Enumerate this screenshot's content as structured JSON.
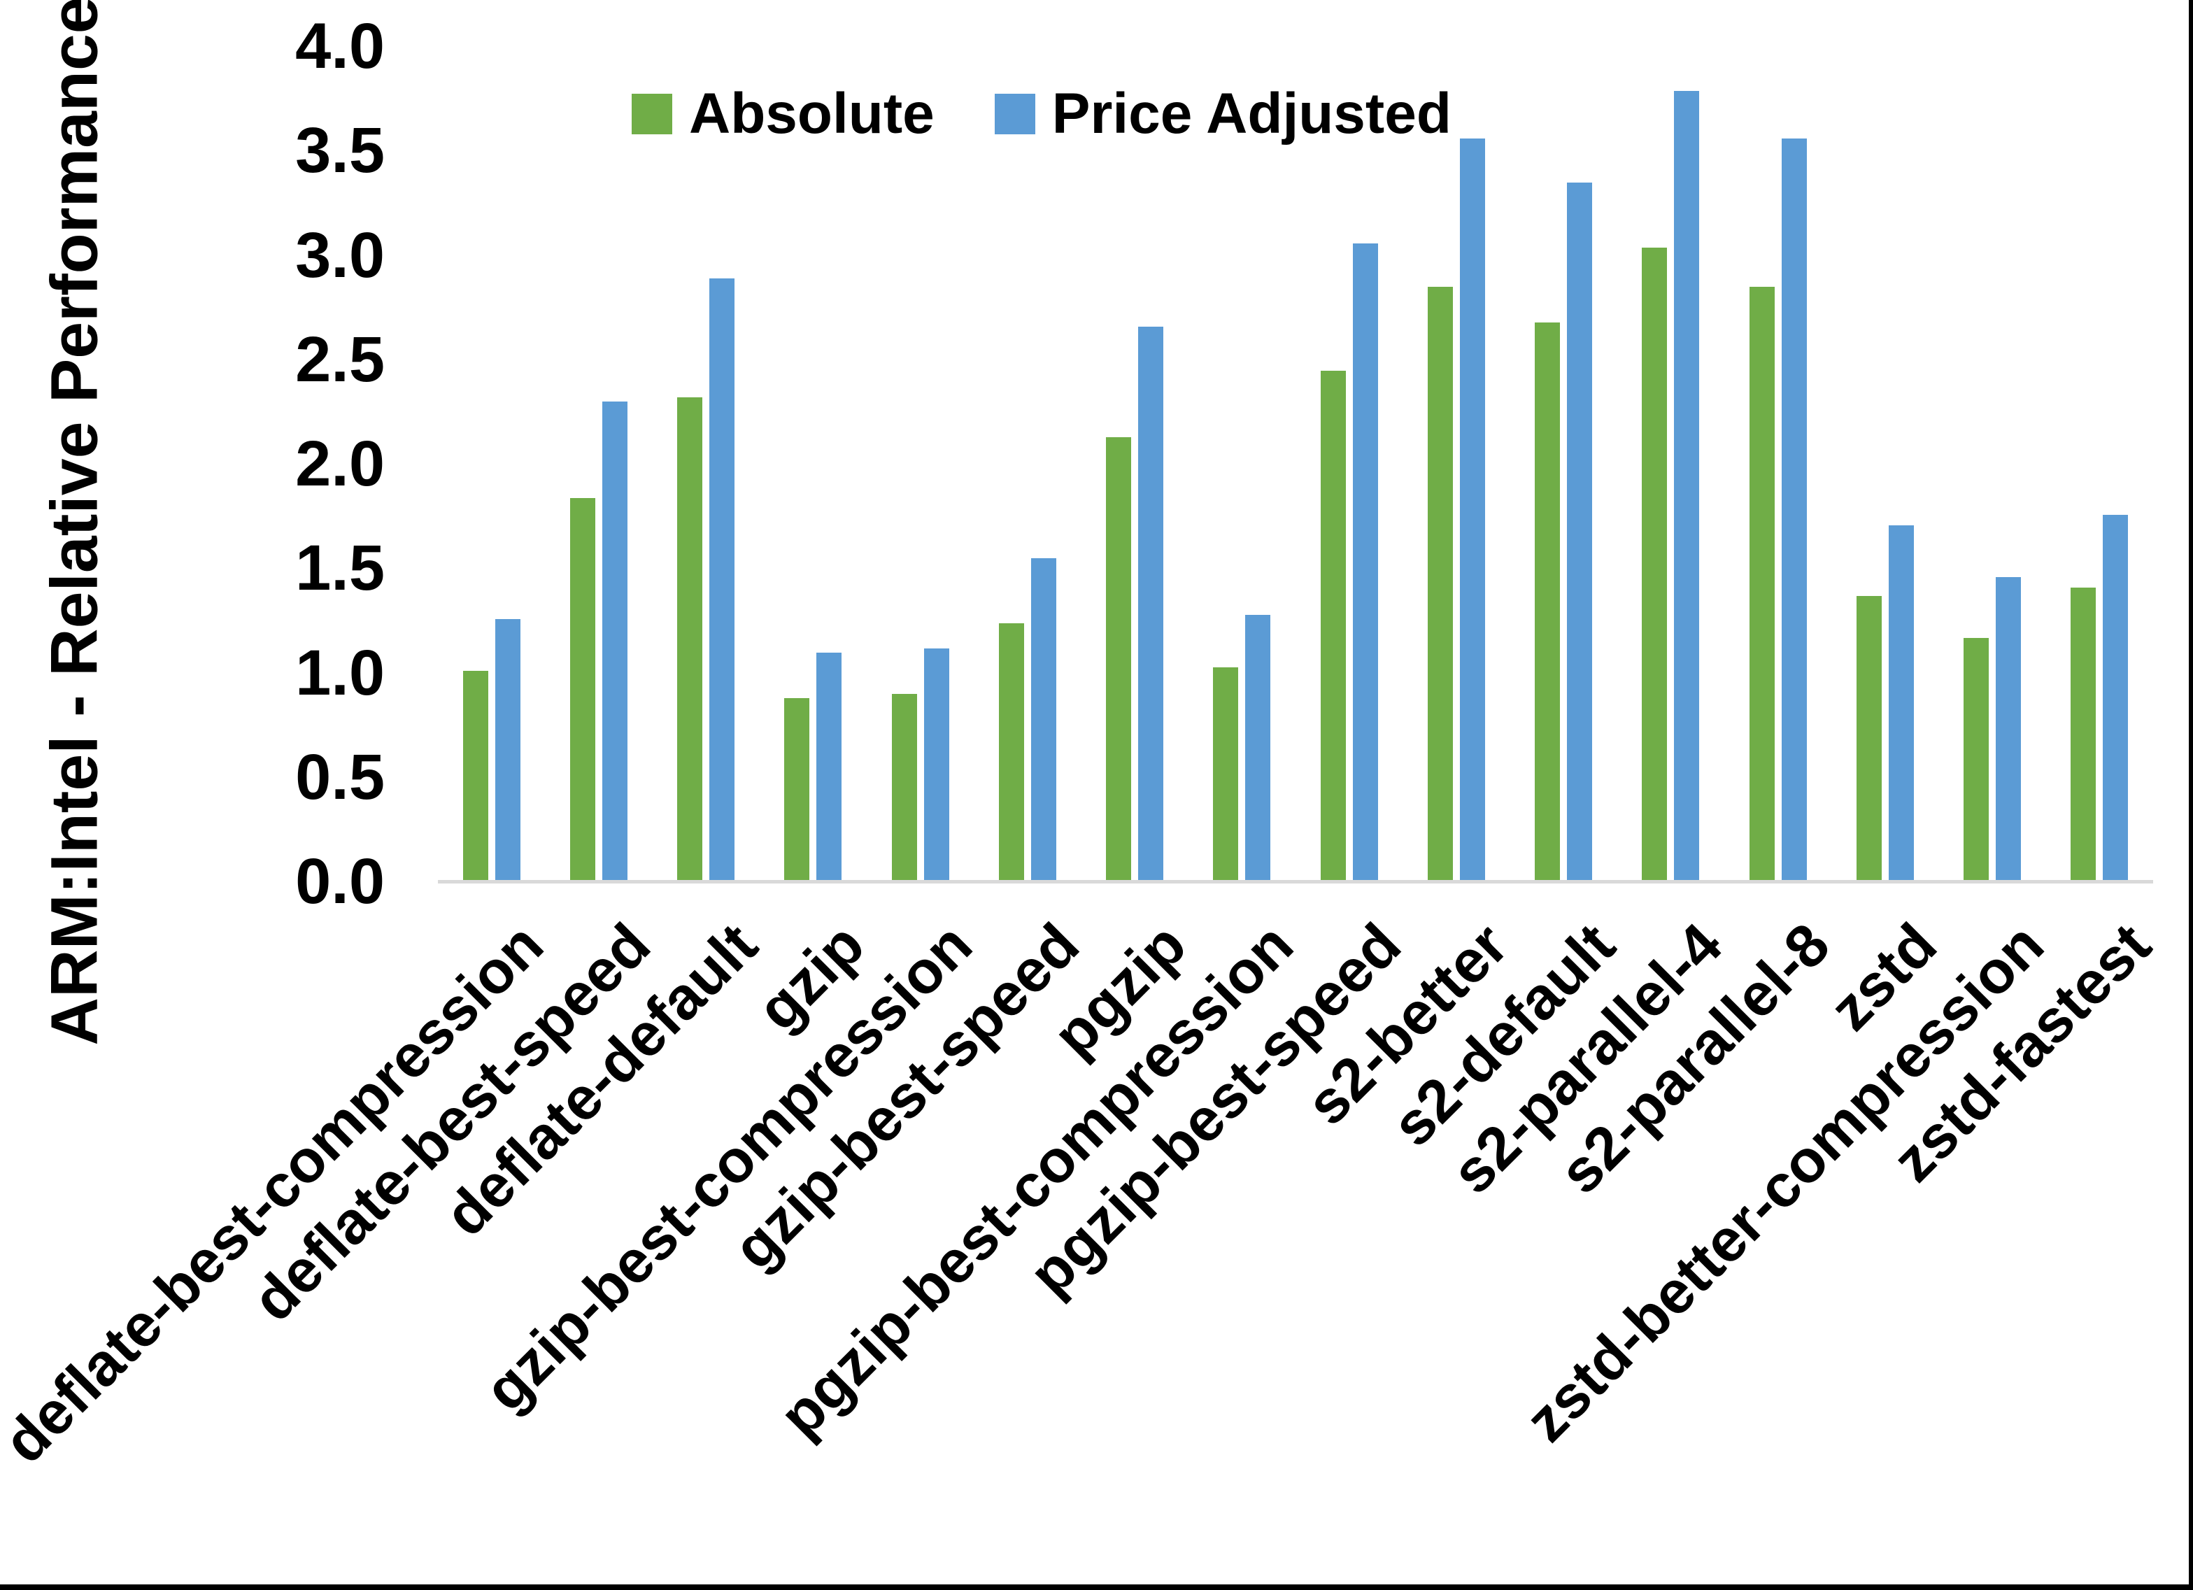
{
  "page": {
    "background": "#FFFFFF",
    "frame_border_color": "#000000"
  },
  "chart_data": {
    "type": "bar",
    "title": "",
    "y_axis_title": "ARM:Intel - Relative Performance",
    "xlabel": "",
    "ylabel": "ARM:Intel - Relative Performance",
    "categories": [
      "deflate-best-compression",
      "deflate-best-speed",
      "deflate-default",
      "gzip",
      "gzip-best-compression",
      "gzip-best-speed",
      "pgzip",
      "pgzip-best-compression",
      "pgzip-best-speed",
      "s2-better",
      "s2-default",
      "s2-parallel-4",
      "s2-parallel-8",
      "zstd",
      "zstd-better-compression",
      "zstd-fastest"
    ],
    "series": [
      {
        "name": "Absolute",
        "color": "#70AD47",
        "values": [
          1.0,
          1.83,
          2.31,
          0.87,
          0.89,
          1.23,
          2.12,
          1.02,
          2.44,
          2.84,
          2.67,
          3.03,
          2.84,
          1.36,
          1.16,
          1.4
        ]
      },
      {
        "name": "Price Adjusted",
        "color": "#5B9BD5",
        "values": [
          1.25,
          2.29,
          2.88,
          1.09,
          1.11,
          1.54,
          2.65,
          1.27,
          3.05,
          3.55,
          3.34,
          3.78,
          3.55,
          1.7,
          1.45,
          1.75
        ]
      }
    ],
    "ylim": [
      0.0,
      4.0
    ],
    "y_ticks": [
      "0.0",
      "0.5",
      "1.0",
      "1.5",
      "2.0",
      "2.5",
      "3.0",
      "3.5",
      "4.0"
    ],
    "grid": false,
    "legend_position": "top-center",
    "axis_line_color": "#D9D9D9",
    "text_color": "#000000"
  }
}
